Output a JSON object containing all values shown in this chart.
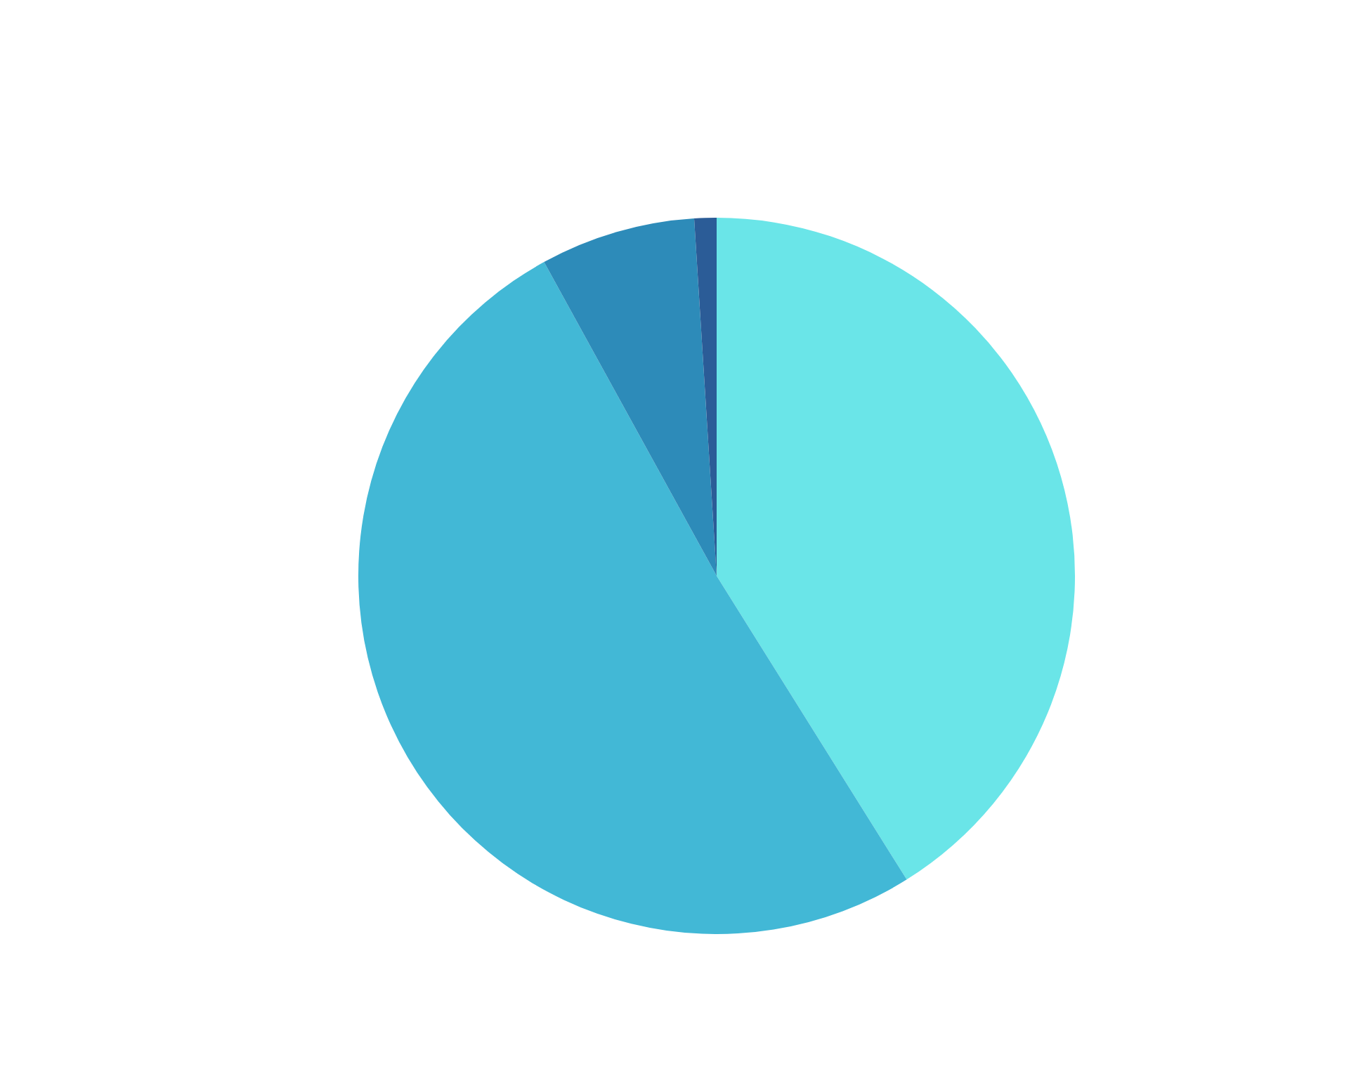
{
  "chart_data": {
    "type": "pie",
    "categories": [
      null,
      null,
      null,
      null
    ],
    "values": [
      41.1,
      50.9,
      7.0,
      1.0
    ],
    "colors": [
      "#6ae5e8",
      "#42b8d6",
      "#2d8bb9",
      "#2b5c97"
    ],
    "legend": false
  }
}
